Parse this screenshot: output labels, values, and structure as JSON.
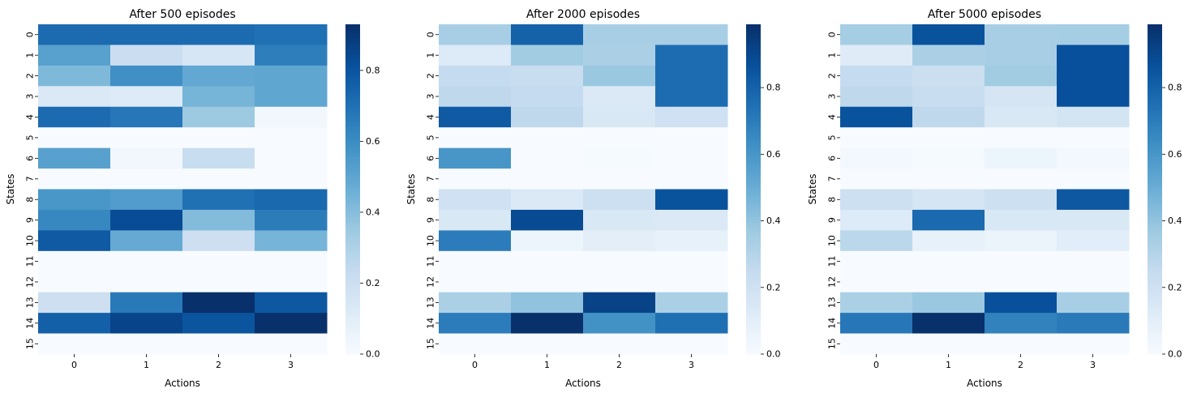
{
  "chart_data": [
    {
      "type": "heatmap",
      "title": "After 500 episodes",
      "xlabel": "Actions",
      "ylabel": "States",
      "x_categories": [
        "0",
        "1",
        "2",
        "3"
      ],
      "y_categories": [
        "0",
        "1",
        "2",
        "3",
        "4",
        "5",
        "6",
        "7",
        "8",
        "9",
        "10",
        "11",
        "12",
        "13",
        "14",
        "15"
      ],
      "values": [
        [
          0.72,
          0.72,
          0.72,
          0.7
        ],
        [
          0.52,
          0.21,
          0.15,
          0.65
        ],
        [
          0.42,
          0.59,
          0.49,
          0.5
        ],
        [
          0.13,
          0.12,
          0.44,
          0.5
        ],
        [
          0.72,
          0.68,
          0.35,
          0.03
        ],
        [
          0.0,
          0.0,
          0.0,
          0.0
        ],
        [
          0.52,
          0.03,
          0.22,
          0.0
        ],
        [
          0.0,
          0.0,
          0.0,
          0.0
        ],
        [
          0.56,
          0.54,
          0.7,
          0.73
        ],
        [
          0.62,
          0.83,
          0.41,
          0.66
        ],
        [
          0.78,
          0.48,
          0.2,
          0.44
        ],
        [
          0.0,
          0.0,
          0.0,
          0.0
        ],
        [
          0.0,
          0.0,
          0.0,
          0.0
        ],
        [
          0.2,
          0.67,
          0.93,
          0.79
        ],
        [
          0.76,
          0.86,
          0.8,
          0.93
        ],
        [
          0.0,
          0.0,
          0.0,
          0.0
        ]
      ],
      "colorbar": {
        "min": 0.0,
        "max": 0.93,
        "ticks": [
          0.0,
          0.2,
          0.4,
          0.6,
          0.8
        ]
      },
      "colormap": "Blues"
    },
    {
      "type": "heatmap",
      "title": "After 2000 episodes",
      "xlabel": "Actions",
      "ylabel": "States",
      "x_categories": [
        "0",
        "1",
        "2",
        "3"
      ],
      "y_categories": [
        "0",
        "1",
        "2",
        "3",
        "4",
        "5",
        "6",
        "7",
        "8",
        "9",
        "10",
        "11",
        "12",
        "13",
        "14",
        "15"
      ],
      "values": [
        [
          0.34,
          0.8,
          0.34,
          0.34
        ],
        [
          0.13,
          0.36,
          0.33,
          0.76
        ],
        [
          0.25,
          0.23,
          0.38,
          0.76
        ],
        [
          0.27,
          0.25,
          0.14,
          0.76
        ],
        [
          0.83,
          0.27,
          0.15,
          0.2
        ],
        [
          0.0,
          0.0,
          0.0,
          0.0
        ],
        [
          0.6,
          0.0,
          0.01,
          0.0
        ],
        [
          0.0,
          0.0,
          0.0,
          0.0
        ],
        [
          0.2,
          0.14,
          0.21,
          0.86
        ],
        [
          0.15,
          0.89,
          0.15,
          0.14
        ],
        [
          0.7,
          0.05,
          0.1,
          0.08
        ],
        [
          0.0,
          0.0,
          0.0,
          0.0
        ],
        [
          0.0,
          0.0,
          0.0,
          0.0
        ],
        [
          0.33,
          0.4,
          0.92,
          0.33
        ],
        [
          0.7,
          0.99,
          0.62,
          0.75
        ],
        [
          0.0,
          0.0,
          0.0,
          0.0
        ]
      ],
      "colorbar": {
        "min": 0.0,
        "max": 0.99,
        "ticks": [
          0.0,
          0.2,
          0.4,
          0.6,
          0.8
        ]
      },
      "colormap": "Blues"
    },
    {
      "type": "heatmap",
      "title": "After 5000 episodes",
      "xlabel": "Actions",
      "ylabel": "States",
      "x_categories": [
        "0",
        "1",
        "2",
        "3"
      ],
      "y_categories": [
        "0",
        "1",
        "2",
        "3",
        "4",
        "5",
        "6",
        "7",
        "8",
        "9",
        "10",
        "11",
        "12",
        "13",
        "14",
        "15"
      ],
      "values": [
        [
          0.35,
          0.86,
          0.34,
          0.35
        ],
        [
          0.12,
          0.33,
          0.34,
          0.87
        ],
        [
          0.25,
          0.22,
          0.36,
          0.87
        ],
        [
          0.27,
          0.23,
          0.17,
          0.87
        ],
        [
          0.86,
          0.27,
          0.15,
          0.18
        ],
        [
          0.0,
          0.0,
          0.0,
          0.0
        ],
        [
          0.02,
          0.01,
          0.05,
          0.02
        ],
        [
          0.0,
          0.0,
          0.0,
          0.0
        ],
        [
          0.21,
          0.17,
          0.21,
          0.84
        ],
        [
          0.13,
          0.77,
          0.15,
          0.15
        ],
        [
          0.28,
          0.08,
          0.06,
          0.11
        ],
        [
          0.0,
          0.0,
          0.0,
          0.0
        ],
        [
          0.0,
          0.0,
          0.0,
          0.0
        ],
        [
          0.33,
          0.38,
          0.87,
          0.34
        ],
        [
          0.72,
          0.99,
          0.68,
          0.71
        ],
        [
          0.0,
          0.0,
          0.0,
          0.0
        ]
      ],
      "colorbar": {
        "min": 0.0,
        "max": 0.99,
        "ticks": [
          0.0,
          0.2,
          0.4,
          0.6,
          0.8
        ]
      },
      "colormap": "Blues"
    }
  ]
}
